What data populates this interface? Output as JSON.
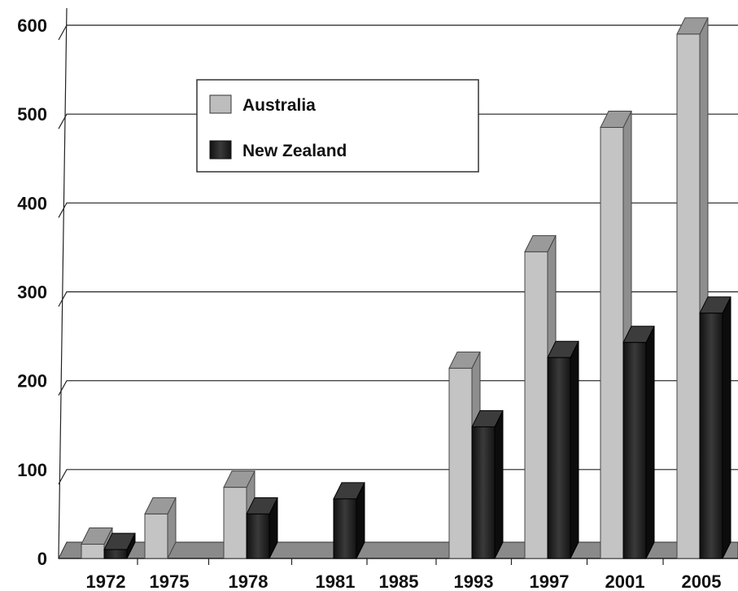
{
  "chart_data": {
    "type": "bar",
    "title": "",
    "xlabel": "",
    "ylabel": "",
    "categories": [
      "1972",
      "1975",
      "1978",
      "1981",
      "1985",
      "1993",
      "1997",
      "2001",
      "2005"
    ],
    "series": [
      {
        "name": "Australia",
        "values": [
          16,
          50,
          80,
          0,
          0,
          214,
          345,
          485,
          590
        ],
        "color": "#bdbdbd"
      },
      {
        "name": "New Zealand",
        "values": [
          10,
          0,
          50,
          67,
          0,
          148,
          226,
          243,
          276
        ],
        "color": "#222222"
      }
    ],
    "ylim": [
      0,
      600
    ],
    "yticks": [
      0,
      100,
      200,
      300,
      400,
      500,
      600
    ],
    "grid": true,
    "three_d": true,
    "legend_position": "upper-left"
  }
}
